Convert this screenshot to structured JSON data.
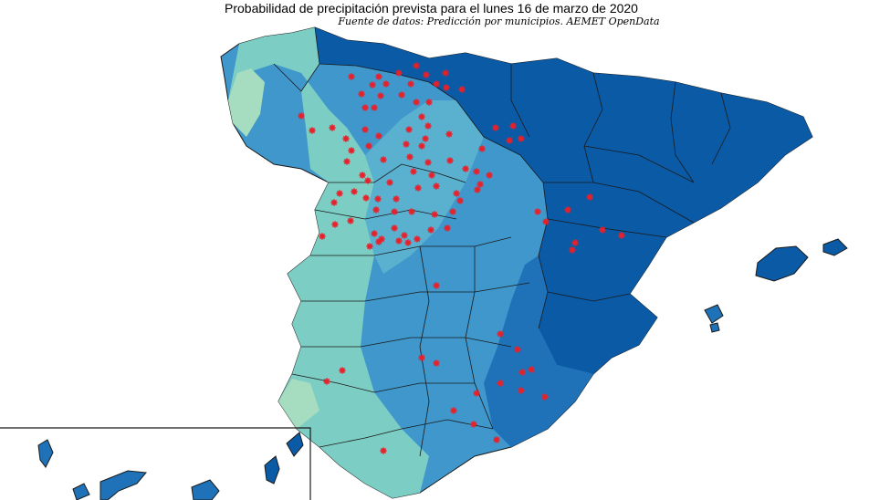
{
  "title": "Probabilidad de precipitación prevista para el lunes 16 de marzo de 2020",
  "source": "Fuente de datos: Predicción por municipios. AEMET OpenData",
  "colors": {
    "high": "#0a5aa6",
    "mid_high": "#1f72b8",
    "mid": "#3f97cc",
    "low_mid": "#5ab0cf",
    "low": "#7ccdc3",
    "lowest": "#a6ddc0",
    "marker": "#e8202a",
    "border": "#1a1a1a"
  },
  "marker_symbol": "asterisk"
}
